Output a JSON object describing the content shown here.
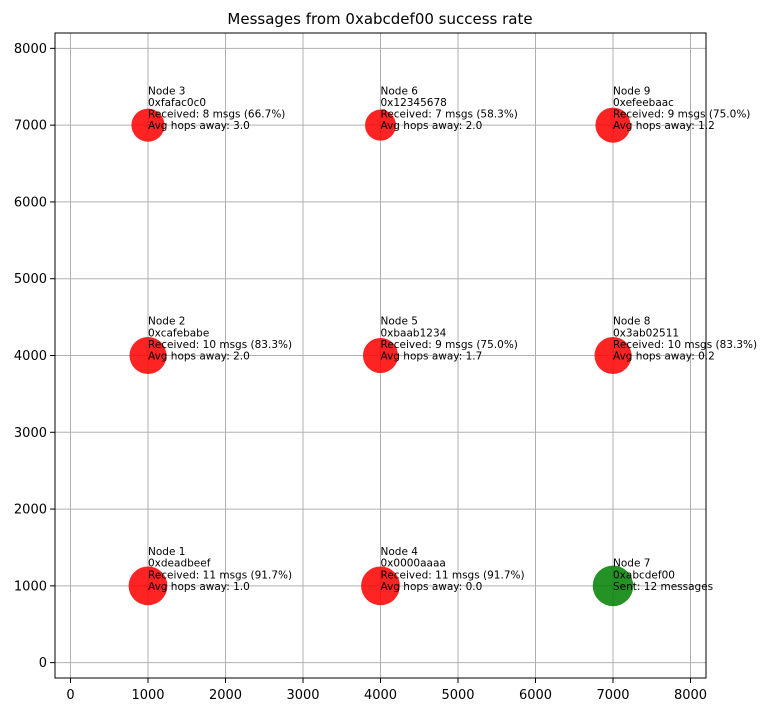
{
  "chart_data": {
    "type": "scatter",
    "title": "Messages from 0xabcdef00 success rate",
    "xlabel": "",
    "ylabel": "",
    "xlim": [
      -200,
      8200
    ],
    "ylim": [
      -200,
      8200
    ],
    "xticks": [
      0,
      1000,
      2000,
      3000,
      4000,
      5000,
      6000,
      7000,
      8000
    ],
    "yticks": [
      0,
      1000,
      2000,
      3000,
      4000,
      5000,
      6000,
      7000,
      8000
    ],
    "grid": true,
    "colors": {
      "receiver": "#ff0000",
      "sender": "#008000",
      "grid": "#b0b0b0",
      "axis": "#000000"
    },
    "nodes": [
      {
        "name": "Node 1",
        "x": 1000,
        "y": 1000,
        "role": "receiver",
        "received": 11,
        "lines": [
          "Node 1",
          "0xdeadbeef",
          "Received: 11 msgs (91.7%)",
          "Avg hops away: 1.0"
        ]
      },
      {
        "name": "Node 2",
        "x": 1000,
        "y": 4000,
        "role": "receiver",
        "received": 10,
        "lines": [
          "Node 2",
          "0xcafebabe",
          "Received: 10 msgs (83.3%)",
          "Avg hops away: 2.0"
        ]
      },
      {
        "name": "Node 3",
        "x": 1000,
        "y": 7000,
        "role": "receiver",
        "received": 8,
        "lines": [
          "Node 3",
          "0xfafac0c0",
          "Received: 8 msgs (66.7%)",
          "Avg hops away: 3.0"
        ]
      },
      {
        "name": "Node 4",
        "x": 4000,
        "y": 1000,
        "role": "receiver",
        "received": 11,
        "lines": [
          "Node 4",
          "0x0000aaaa",
          "Received: 11 msgs (91.7%)",
          "Avg hops away: 0.0"
        ]
      },
      {
        "name": "Node 5",
        "x": 4000,
        "y": 4000,
        "role": "receiver",
        "received": 9,
        "lines": [
          "Node 5",
          "0xbaab1234",
          "Received: 9 msgs (75.0%)",
          "Avg hops away: 1.7"
        ]
      },
      {
        "name": "Node 6",
        "x": 4000,
        "y": 7000,
        "role": "receiver",
        "received": 7,
        "lines": [
          "Node 6",
          "0x12345678",
          "Received: 7 msgs (58.3%)",
          "Avg hops away: 2.0"
        ]
      },
      {
        "name": "Node 7",
        "x": 7000,
        "y": 1000,
        "role": "sender",
        "sent": 12,
        "lines": [
          "Node 7",
          "0xabcdef00",
          "Sent: 12 messages"
        ]
      },
      {
        "name": "Node 8",
        "x": 7000,
        "y": 4000,
        "role": "receiver",
        "received": 10,
        "lines": [
          "Node 8",
          "0x3ab02511",
          "Received: 10 msgs (83.3%)",
          "Avg hops away: 0.2"
        ]
      },
      {
        "name": "Node 9",
        "x": 7000,
        "y": 7000,
        "role": "receiver",
        "received": 9,
        "lines": [
          "Node 9",
          "0xefeebaac",
          "Received: 9 msgs (75.0%)",
          "Avg hops away: 1.2"
        ]
      }
    ]
  }
}
